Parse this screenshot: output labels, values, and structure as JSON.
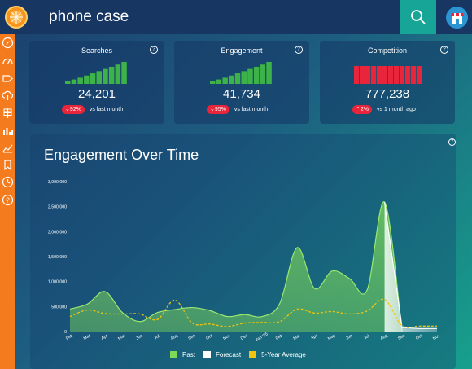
{
  "search": {
    "query": "phone case"
  },
  "header": {
    "logo_icon": "orange-slice-icon",
    "search_button_icon": "search-icon",
    "store_button_icon": "storefront-icon"
  },
  "sidebar": {
    "items": [
      {
        "icon": "compass-icon"
      },
      {
        "icon": "gauge-icon"
      },
      {
        "icon": "tag-icon"
      },
      {
        "icon": "cloud-download-icon"
      },
      {
        "icon": "signpost-icon"
      },
      {
        "icon": "bar-chart-icon"
      },
      {
        "icon": "line-chart-icon"
      },
      {
        "icon": "bookmark-icon"
      },
      {
        "icon": "clock-icon"
      },
      {
        "icon": "help-icon"
      }
    ]
  },
  "cards": [
    {
      "title": "Searches",
      "value": "24,201",
      "change": "92%",
      "direction": "down",
      "period": "vs last month",
      "bar_color": "#3db249",
      "bar_levels": [
        0.12,
        0.2,
        0.28,
        0.38,
        0.48,
        0.58,
        0.68,
        0.78,
        0.88,
        1.0
      ]
    },
    {
      "title": "Engagement",
      "value": "41,734",
      "change": "95%",
      "direction": "down",
      "period": "vs last month",
      "bar_color": "#3db249",
      "bar_levels": [
        0.12,
        0.2,
        0.28,
        0.38,
        0.48,
        0.58,
        0.68,
        0.78,
        0.88,
        1.0
      ]
    },
    {
      "title": "Competition",
      "value": "777,238",
      "change": "2%",
      "direction": "up",
      "period": "vs 1 month ago",
      "bar_color": "#e8253a",
      "bar_levels": [
        1,
        1,
        1,
        1,
        1,
        1,
        1,
        1,
        1,
        1,
        1,
        1
      ]
    }
  ],
  "chart_data": {
    "type": "area",
    "title": "Engagement Over Time",
    "categories": [
      "Feb",
      "Mar",
      "Apr",
      "May",
      "Jun",
      "Jul",
      "Aug",
      "Sep",
      "Oct",
      "Nov",
      "Dec",
      "Jan '25",
      "Feb",
      "Mar",
      "Apr",
      "May",
      "Jun",
      "Jul",
      "Aug",
      "Sep",
      "Oct",
      "Nov"
    ],
    "yticks": [
      "0",
      "500,000",
      "1,000,000",
      "1,500,000",
      "2,000,000",
      "2,500,000",
      "3,000,000"
    ],
    "ylim": [
      0,
      3000000
    ],
    "series": [
      {
        "name": "Past",
        "color": "#7ed957",
        "values": [
          450000,
          550000,
          800000,
          380000,
          200000,
          380000,
          440000,
          480000,
          420000,
          300000,
          340000,
          300000,
          560000,
          1680000,
          860000,
          1210000,
          1060000,
          830000,
          2590000,
          0,
          null,
          null
        ]
      },
      {
        "name": "Forecast",
        "color": "#ffffff",
        "values": [
          null,
          null,
          null,
          null,
          null,
          null,
          null,
          null,
          null,
          null,
          null,
          null,
          null,
          null,
          null,
          null,
          null,
          null,
          2590000,
          80000,
          60000,
          60000
        ]
      },
      {
        "name": "5-Year Average",
        "color": "#f2c40f",
        "values": [
          300000,
          430000,
          360000,
          350000,
          350000,
          240000,
          630000,
          170000,
          150000,
          100000,
          170000,
          180000,
          200000,
          450000,
          370000,
          400000,
          350000,
          410000,
          640000,
          120000,
          110000,
          110000
        ]
      }
    ],
    "legend": "bottom",
    "grid": false
  }
}
